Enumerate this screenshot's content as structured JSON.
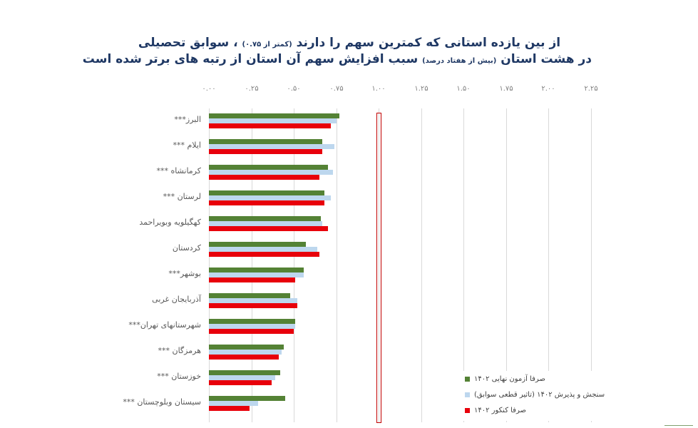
{
  "title": {
    "line1_main": "از بین یازده استانی که کمترین سهم را دارند",
    "line1_small": "(کمتر از ۰.۷۵)",
    "line1_end": "، سوابق تحصیلی",
    "line2_start": "در هشت استان",
    "line2_small": "(بیش از هفتاد درصد)",
    "line2_end": "سبب افزایش سهم آن استان از رتبه های برتر شده است"
  },
  "axis": {
    "ticks": [
      "۰.۰۰",
      "۰.۲۵",
      "۰.۵۰",
      "۰.۷۵",
      "۱.۰۰",
      "۱.۲۵",
      "۱.۵۰",
      "۱.۷۵",
      "۲.۰۰",
      "۲.۲۵"
    ]
  },
  "legend": {
    "items": [
      {
        "label": "صرفا آزمون نهایی ۱۴۰۲",
        "color": "#548235"
      },
      {
        "label": "سنجش و پذیرش ۱۴۰۲ (تاثیر قطعی سوابق)",
        "color": "#BDD7EE"
      },
      {
        "label": "صرفا کنکور ۱۴۰۲",
        "color": "#E8000B"
      }
    ]
  },
  "chart_data": {
    "type": "bar",
    "orientation": "horizontal",
    "title": "از بین یازده استانی که کمترین سهم را دارند (کمتر از ۰.۷۵) ، سوابق تحصیلی در هشت استان (بیش از هفتاد درصد) سبب افزایش سهم آن استان از رتبه های برتر شده است",
    "xlabel": "",
    "ylabel": "",
    "xlim": [
      0,
      2.25
    ],
    "x_ticks": [
      0,
      0.25,
      0.5,
      0.75,
      1.0,
      1.25,
      1.5,
      1.75,
      2.0,
      2.25
    ],
    "grid": true,
    "legend_position": "bottom-right inside",
    "annotations": [
      "Red outlined vertical band at x = 1.00 spanning full plot height"
    ],
    "categories": [
      "البرز***",
      "ایلام ***",
      "کرمانشاه ***",
      "لرستان ***",
      "کهگیلویه وبویراحمد",
      "کردستان",
      "بوشهر***",
      "آذربایجان غربی",
      "شهرستانهای تهران***",
      "هرمزگان ***",
      "خوزستان ***",
      "سیستان وبلوچستان ***"
    ],
    "series": [
      {
        "name": "صرفا آزمون نهایی ۱۴۰۲",
        "color": "#548235",
        "values": [
          0.77,
          0.67,
          0.7,
          0.68,
          0.66,
          0.57,
          0.56,
          0.48,
          0.51,
          0.44,
          0.42,
          0.45
        ]
      },
      {
        "name": "سنجش و پذیرش ۱۴۰۲ (تاثیر قطعی سوابق)",
        "color": "#BDD7EE",
        "values": [
          0.75,
          0.74,
          0.73,
          0.72,
          0.67,
          0.64,
          0.56,
          0.52,
          0.51,
          0.43,
          0.39,
          0.29
        ]
      },
      {
        "name": "صرفا کنکور ۱۴۰۲",
        "color": "#E8000B",
        "values": [
          0.72,
          0.67,
          0.65,
          0.68,
          0.7,
          0.65,
          0.51,
          0.52,
          0.5,
          0.41,
          0.37,
          0.24
        ]
      }
    ]
  }
}
